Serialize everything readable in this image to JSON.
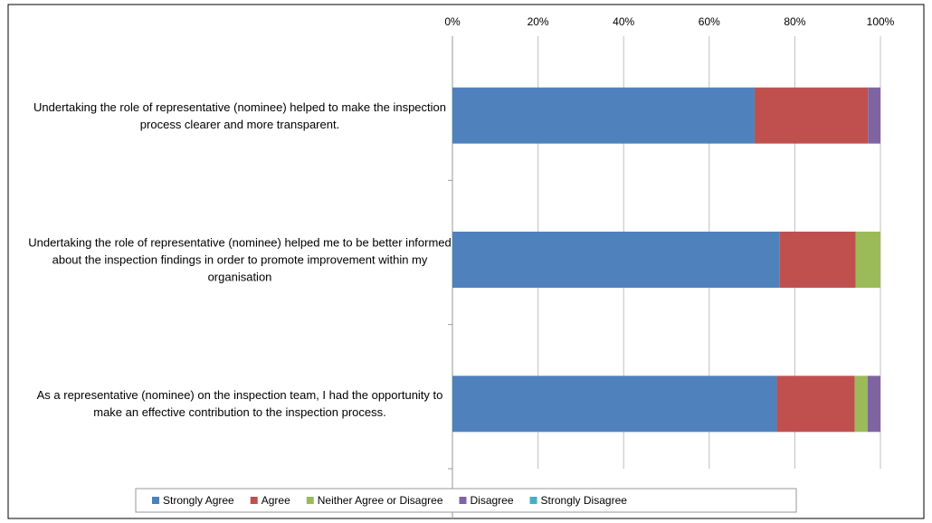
{
  "chart_data": {
    "type": "stacked_barh",
    "categories": [
      "Undertaking the role of representative (nominee) helped to make the inspection process clearer and more transparent.",
      "Undertaking the role of representative (nominee) helped me to be better informed about the inspection findings in order to promote improvement within my organisation",
      "As a representative (nominee) on the inspection team, I had the opportunity to make an effective contribution to the inspection process."
    ],
    "series": [
      {
        "name": "Strongly Agree",
        "color": "#4f81bd",
        "values": [
          70.6,
          76.5,
          75.8
        ]
      },
      {
        "name": "Agree",
        "color": "#c0504d",
        "values": [
          26.5,
          17.7,
          18.2
        ]
      },
      {
        "name": "Neither Agree or Disagree",
        "color": "#9bbb59",
        "values": [
          0,
          5.8,
          3.0
        ]
      },
      {
        "name": "Disagree",
        "color": "#8064a2",
        "values": [
          2.9,
          0,
          3.0
        ]
      },
      {
        "name": "Strongly Disagree",
        "color": "#4bacc6",
        "values": [
          0,
          0,
          0
        ]
      }
    ],
    "xlim": [
      0,
      100
    ],
    "xticks": [
      {
        "value": 0,
        "label": "0%"
      },
      {
        "value": 20,
        "label": "20%"
      },
      {
        "value": 40,
        "label": "40%"
      },
      {
        "value": 60,
        "label": "60%"
      },
      {
        "value": 80,
        "label": "80%"
      },
      {
        "value": 100,
        "label": "100%"
      }
    ],
    "grid": true,
    "legend": "bottom"
  }
}
